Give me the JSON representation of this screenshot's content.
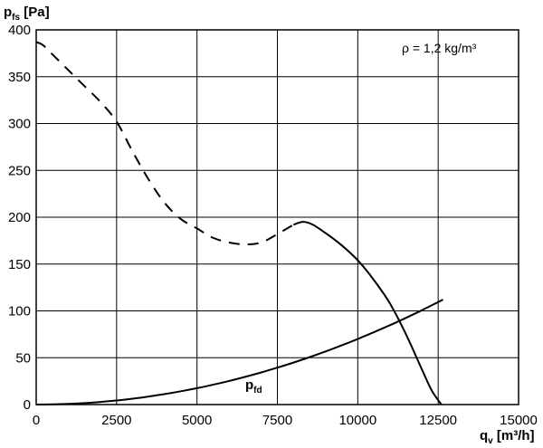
{
  "chart_data": {
    "type": "line",
    "title": "",
    "ylabel": {
      "main": "p",
      "sub": "fs",
      "unit": " [Pa]"
    },
    "xlabel": {
      "main": "q",
      "sub": "v",
      "unit": " [m³/h]"
    },
    "xlim": [
      0,
      15000
    ],
    "ylim": [
      0,
      400
    ],
    "x_ticks": [
      0,
      2500,
      5000,
      7500,
      10000,
      12500,
      15000
    ],
    "y_ticks": [
      0,
      50,
      100,
      150,
      200,
      250,
      300,
      350,
      400
    ],
    "grid": true,
    "annotation": "ρ = 1,2 kg/m³",
    "series": [
      {
        "style": "dashed",
        "x": [
          0,
          200,
          500,
          1000,
          1500,
          2000,
          2500,
          3000,
          3500,
          4000,
          4500,
          5000,
          5500,
          6000,
          6500,
          7000,
          7500,
          8000
        ],
        "y": [
          387,
          384,
          374,
          357,
          340,
          323,
          302,
          270,
          240,
          215,
          198,
          188,
          178,
          173,
          171,
          173,
          182,
          192
        ]
      },
      {
        "style": "solid",
        "x": [
          8000,
          8300,
          8600,
          9000,
          9500,
          10000,
          10500,
          11000,
          11500,
          12000,
          12300,
          12600
        ],
        "y": [
          192,
          195,
          192,
          183,
          170,
          154,
          133,
          108,
          75,
          37,
          15,
          0
        ]
      },
      {
        "name": "p",
        "name_sub": "fd",
        "style": "solid",
        "x": [
          0,
          500,
          1000,
          1500,
          2000,
          2500,
          3000,
          3500,
          4000,
          4500,
          5000,
          5500,
          6000,
          6500,
          7000,
          7500,
          8000,
          8500,
          9000,
          9500,
          10000,
          10500,
          11000,
          11500,
          12000,
          12500,
          12650
        ],
        "y": [
          0,
          0.2,
          0.7,
          1.6,
          2.8,
          4.4,
          6.3,
          8.6,
          11.2,
          14.2,
          17.5,
          21.2,
          25.2,
          29.6,
          34.3,
          39.4,
          44.8,
          50.6,
          56.7,
          63.2,
          70.0,
          77.2,
          84.7,
          92.6,
          100.8,
          109.4,
          112.0
        ]
      }
    ]
  }
}
